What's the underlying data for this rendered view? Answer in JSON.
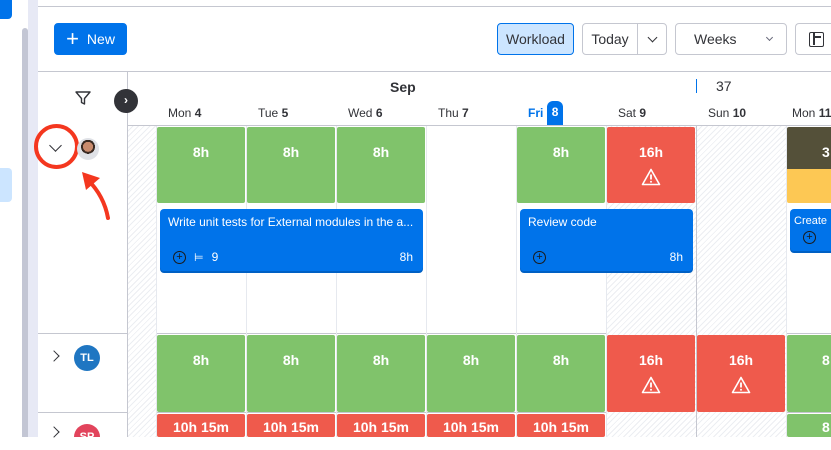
{
  "toolbar": {
    "new_label": "New",
    "workload_label": "Workload",
    "today_label": "Today",
    "view_select": "Weeks"
  },
  "header": {
    "month": "Sep",
    "week_number": "37"
  },
  "days": [
    {
      "name": "Mon",
      "num": "4"
    },
    {
      "name": "Tue",
      "num": "5"
    },
    {
      "name": "Wed",
      "num": "6"
    },
    {
      "name": "Thu",
      "num": "7"
    },
    {
      "name": "Fri",
      "num": "8",
      "today": true
    },
    {
      "name": "Sat",
      "num": "9"
    },
    {
      "name": "Sun",
      "num": "10"
    },
    {
      "name": "Mon",
      "num": "11"
    }
  ],
  "rows": [
    {
      "avatar": "photo",
      "expanded": true,
      "cells": [
        "8h",
        "8h",
        "8h",
        "",
        "8h",
        "16h",
        "",
        "3"
      ],
      "tasks": [
        {
          "title": "Write unit tests for External modules in the a...",
          "subitems": "9",
          "hours": "8h"
        },
        {
          "title": "Review code",
          "hours": "8h"
        },
        {
          "title": "Create"
        }
      ]
    },
    {
      "avatar": "TL",
      "avatar_color": "#1f76c2",
      "cells": [
        "8h",
        "8h",
        "8h",
        "8h",
        "8h",
        "16h",
        "16h",
        "8"
      ]
    },
    {
      "avatar": "SP",
      "avatar_color": "#e2445c",
      "cells": [
        "10h 15m",
        "10h 15m",
        "10h 15m",
        "10h 15m",
        "10h 15m",
        "",
        "",
        "8"
      ]
    }
  ],
  "colors": {
    "accent": "#0073ea",
    "ok": "#80c36b",
    "over": "#ef5a4c",
    "annotation": "#f4371f"
  }
}
